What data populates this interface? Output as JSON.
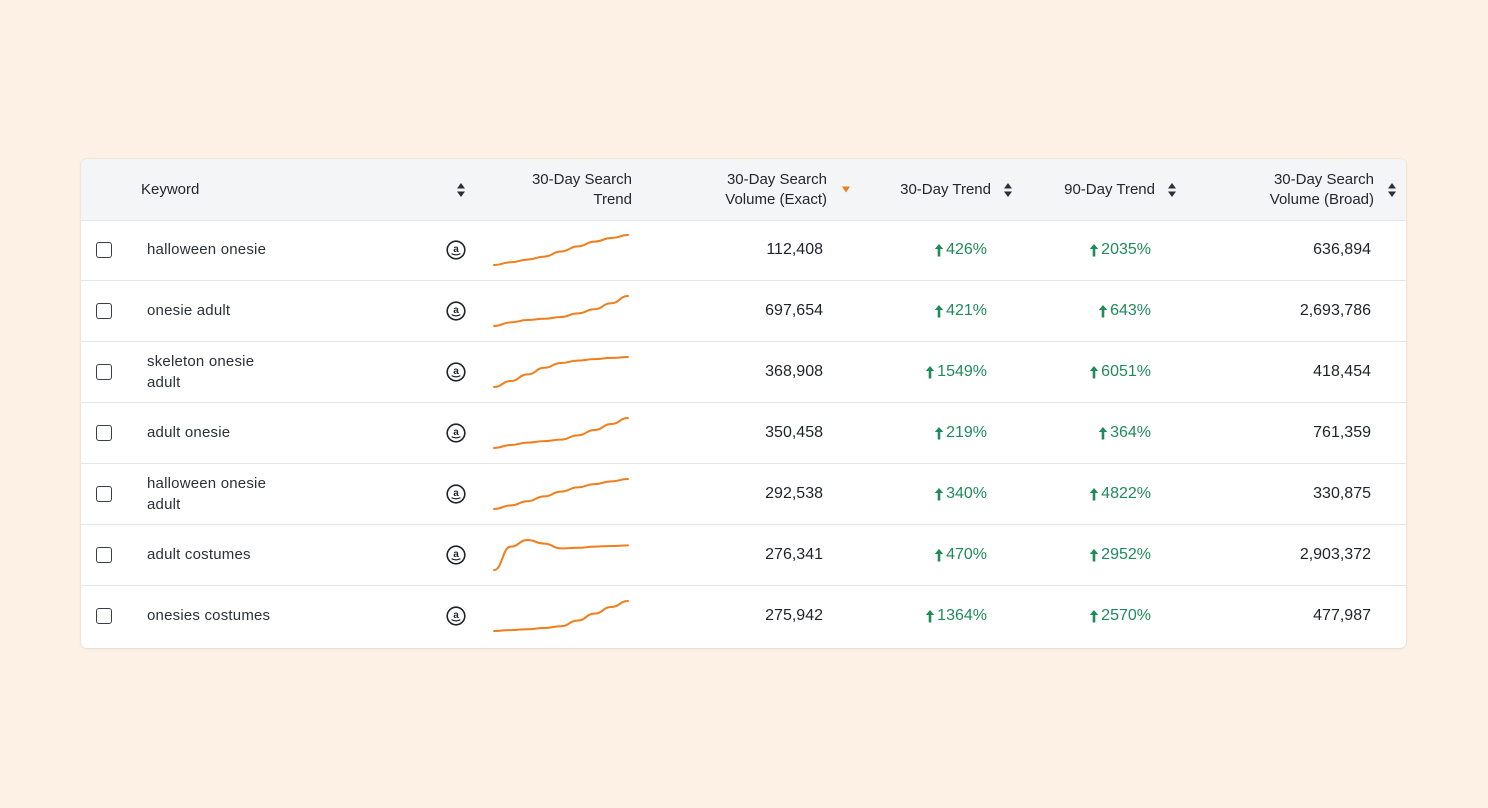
{
  "header": {
    "keyword": "Keyword",
    "trend_line": [
      "30-Day Search",
      "Trend"
    ],
    "volume_exact": [
      "30-Day Search",
      "Volume (Exact)"
    ],
    "trend30": "30-Day Trend",
    "trend90": "90-Day Trend",
    "volume_broad": [
      "30-Day Search",
      "Volume (Broad)"
    ]
  },
  "colors": {
    "accent": "#f07e1c",
    "positive": "#1f8a5a",
    "background": "#fdf1e5"
  },
  "icons": {
    "marketplace": "amazon-icon",
    "trend_up": "arrow-up-icon",
    "sort": "sort-icon",
    "sort_active": "sort-desc-icon"
  },
  "rows": [
    {
      "keyword": [
        "halloween onesie"
      ],
      "volume_exact": "112,408",
      "trend30": "426%",
      "trend90": "2035%",
      "volume_broad": "636,894",
      "spark": [
        0,
        0.09,
        0.18,
        0.28,
        0.45,
        0.62,
        0.78,
        0.9,
        1
      ]
    },
    {
      "keyword": [
        "onesie adult"
      ],
      "volume_exact": "697,654",
      "trend30": "421%",
      "trend90": "643%",
      "volume_broad": "2,693,786",
      "spark": [
        0,
        0.12,
        0.2,
        0.24,
        0.3,
        0.42,
        0.56,
        0.76,
        1
      ]
    },
    {
      "keyword": [
        "skeleton onesie",
        "adult"
      ],
      "volume_exact": "368,908",
      "trend30": "1549%",
      "trend90": "6051%",
      "volume_broad": "418,454",
      "spark": [
        0,
        0.2,
        0.42,
        0.64,
        0.8,
        0.88,
        0.93,
        0.97,
        1
      ]
    },
    {
      "keyword": [
        "adult onesie"
      ],
      "volume_exact": "350,458",
      "trend30": "219%",
      "trend90": "364%",
      "volume_broad": "761,359",
      "spark": [
        0,
        0.1,
        0.18,
        0.23,
        0.28,
        0.42,
        0.6,
        0.8,
        1
      ]
    },
    {
      "keyword": [
        "halloween onesie",
        "adult"
      ],
      "volume_exact": "292,538",
      "trend30": "340%",
      "trend90": "4822%",
      "volume_broad": "330,875",
      "spark": [
        0,
        0.12,
        0.26,
        0.42,
        0.58,
        0.72,
        0.83,
        0.92,
        1
      ]
    },
    {
      "keyword": [
        "adult costumes"
      ],
      "volume_exact": "276,341",
      "trend30": "470%",
      "trend90": "2952%",
      "volume_broad": "2,903,372",
      "spark": [
        0,
        0.78,
        1,
        0.88,
        0.72,
        0.74,
        0.78,
        0.8,
        0.82
      ]
    },
    {
      "keyword": [
        "onesies costumes"
      ],
      "volume_exact": "275,942",
      "trend30": "1364%",
      "trend90": "2570%",
      "volume_broad": "477,987",
      "spark": [
        0,
        0.03,
        0.06,
        0.1,
        0.16,
        0.35,
        0.58,
        0.8,
        1
      ]
    }
  ]
}
